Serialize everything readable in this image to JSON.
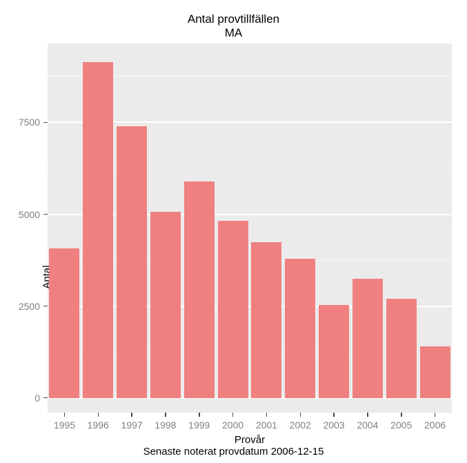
{
  "title": {
    "line1": "Antal provtillfällen",
    "line2": "MA"
  },
  "chart_data": {
    "type": "bar",
    "title": "Antal provtillfällen",
    "subtitle": "MA",
    "categories": [
      "1995",
      "1996",
      "1997",
      "1998",
      "1999",
      "2000",
      "2001",
      "2002",
      "2003",
      "2004",
      "2005",
      "2006"
    ],
    "values": [
      4080,
      9150,
      7400,
      5060,
      5890,
      4820,
      4240,
      3780,
      2530,
      3235,
      2700,
      1410
    ],
    "xlabel": "Provår",
    "ylabel": "Antal",
    "caption": "Senaste noterat provdatum 2006-12-15",
    "y_ticks": [
      0,
      2500,
      5000,
      7500
    ],
    "y_minor_ticks": [
      1250,
      3750,
      6250,
      8750
    ],
    "ylim": [
      -400,
      9650
    ],
    "grid": "on",
    "legend": "none",
    "bar_color": "#F08080",
    "panel_bg": "#EBEBEB",
    "grid_color": "#FFFFFF",
    "tick_label_color": "#7f7f7f",
    "text_color": "#000000"
  }
}
